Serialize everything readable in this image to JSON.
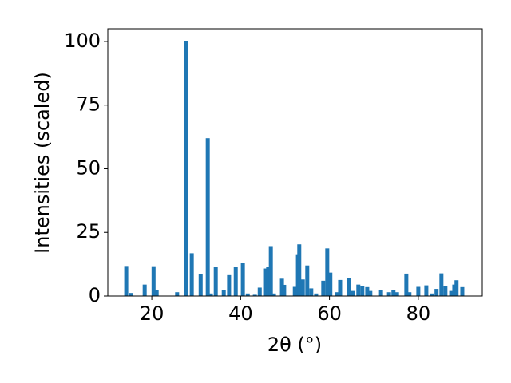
{
  "chart_data": {
    "type": "bar",
    "x_label": "2θ (°)",
    "y_label": "Intensities (scaled)",
    "color": "#1f77b4",
    "x": [
      14.25,
      15.3,
      18.4,
      20.4,
      21.1,
      25.7,
      27.7,
      29.0,
      31.0,
      32.6,
      33.3,
      34.4,
      36.2,
      37.4,
      38.9,
      40.5,
      41.6,
      43.2,
      44.3,
      45.7,
      46.2,
      46.8,
      47.5,
      49.3,
      49.8,
      52.2,
      52.9,
      53.2,
      54.0,
      55.0,
      55.9,
      57.0,
      58.6,
      59.5,
      60.2,
      61.7,
      62.4,
      64.4,
      65.3,
      66.5,
      67.4,
      68.5,
      69.2,
      71.6,
      73.4,
      74.4,
      75.2,
      77.3,
      78.0,
      80.0,
      81.8,
      83.1,
      84.1,
      85.2,
      86.1,
      87.4,
      88.1,
      88.6,
      89.9
    ],
    "values": [
      11.8,
      1.2,
      4.5,
      11.7,
      2.5,
      1.5,
      100,
      16.8,
      8.6,
      62,
      1,
      11.4,
      2.5,
      8.2,
      11.4,
      13,
      1,
      0.5,
      3.3,
      10.8,
      11.5,
      19.6,
      1,
      6.8,
      4.4,
      3.6,
      16.4,
      20.3,
      6.5,
      12,
      3,
      1,
      6,
      18.7,
      9.2,
      1.5,
      6.3,
      7,
      2,
      4.5,
      3.8,
      3.5,
      2,
      2.5,
      1.5,
      2.5,
      1.5,
      8.8,
      1.5,
      3.6,
      4.2,
      1,
      2.8,
      8.9,
      3.8,
      2,
      4.5,
      6.2,
      3.5
    ],
    "xlim": [
      10.1,
      94.4
    ],
    "ylim": [
      0,
      105
    ],
    "xticks": [
      20,
      40,
      60,
      80
    ],
    "yticks": [
      0,
      25,
      50,
      75,
      100
    ]
  }
}
